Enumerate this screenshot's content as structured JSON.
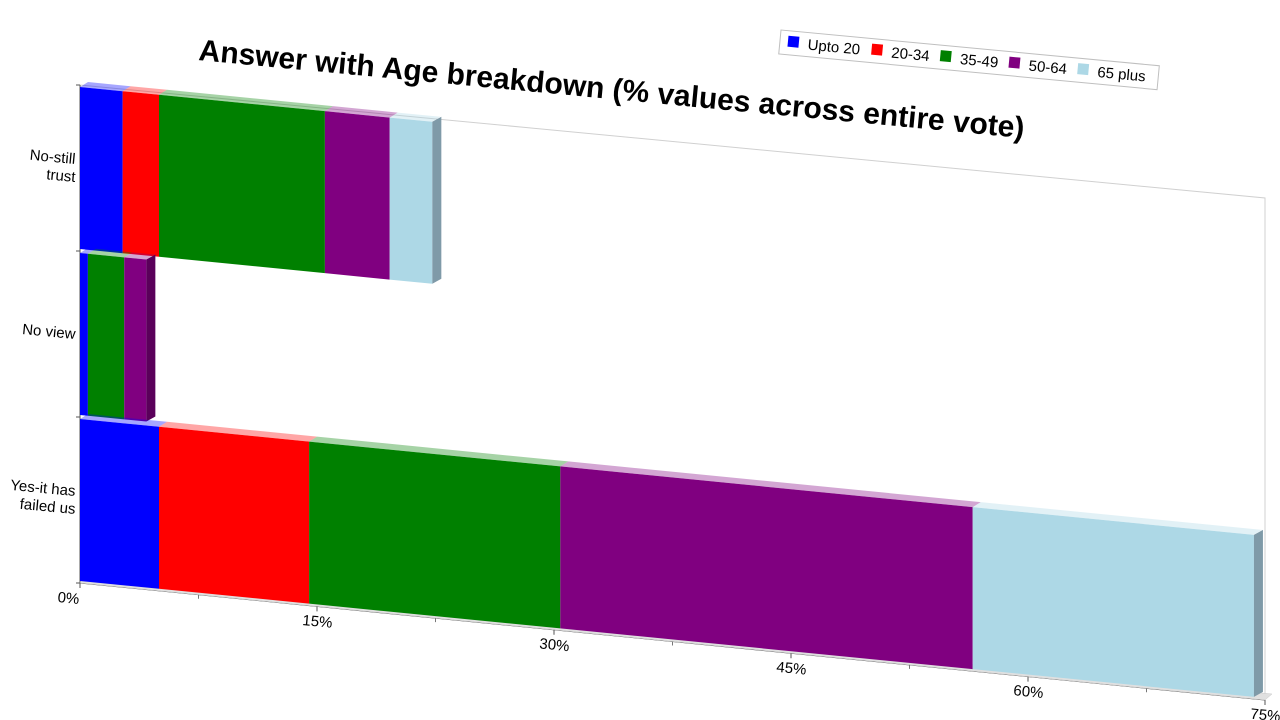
{
  "chart_data": {
    "type": "bar",
    "orientation": "horizontal",
    "stacked": true,
    "title": "Answer with Age breakdown (% values across entire vote)",
    "xlabel": "",
    "ylabel": "",
    "categories": [
      "No-still trust",
      "No view",
      "Yes-it has failed us"
    ],
    "series": [
      {
        "name": "Upto 20",
        "color": "#0000ff",
        "values": [
          2.7,
          0.5,
          5.0
        ]
      },
      {
        "name": "20-34",
        "color": "#ff0000",
        "values": [
          2.3,
          0.0,
          9.5
        ]
      },
      {
        "name": "35-49",
        "color": "#008000",
        "values": [
          10.5,
          2.3,
          15.9
        ]
      },
      {
        "name": "50-64",
        "color": "#800080",
        "values": [
          4.1,
          1.4,
          26.1
        ]
      },
      {
        "name": "65 plus",
        "color": "#add8e6",
        "values": [
          2.7,
          0.0,
          17.8
        ]
      }
    ],
    "category_labels": [
      [
        "No-still",
        "trust"
      ],
      [
        "No view"
      ],
      [
        "Yes-it has",
        "failed us"
      ]
    ],
    "x_ticks": [
      "0%",
      "15%",
      "30%",
      "45%",
      "60%",
      "75%"
    ],
    "xlim": [
      0,
      75
    ],
    "legend_position": "top-right",
    "grid": false
  }
}
